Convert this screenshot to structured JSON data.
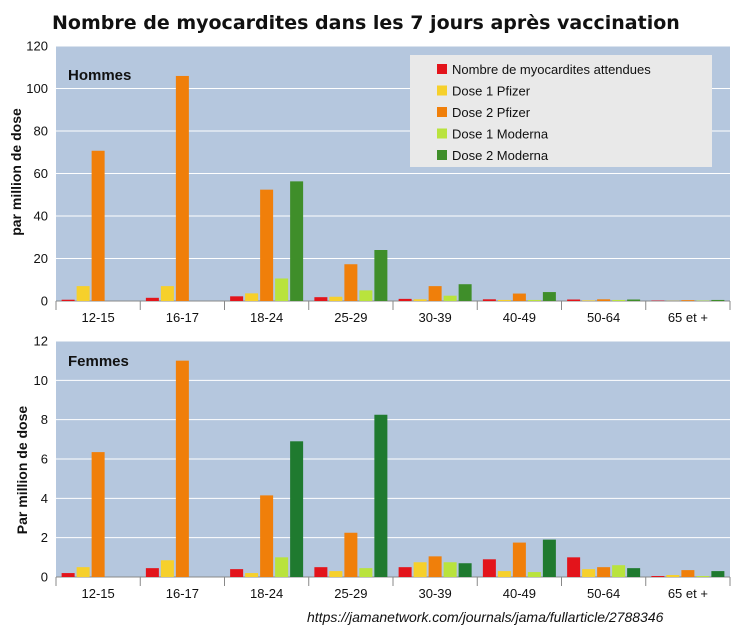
{
  "title": "Nombre de myocardites dans les 7 jours après vaccination",
  "source": "https://jamanetwork.com/journals/jama/fullarticle/2788346",
  "colors": {
    "plot_bg": "#b5c7de",
    "gridline": "#ffffff",
    "legend_bg": "#e9e9e9"
  },
  "chart_data": [
    {
      "type": "bar",
      "title": "Hommes",
      "xlabel": "",
      "ylabel": "par million de dose",
      "ylim": [
        0,
        120
      ],
      "yticks": [
        0,
        20,
        40,
        60,
        80,
        100,
        120
      ],
      "grid": true,
      "legend_position": "top-right",
      "categories": [
        "12-15",
        "16-17",
        "18-24",
        "25-29",
        "30-39",
        "40-49",
        "50-64",
        "65 et +"
      ],
      "series": [
        {
          "name": "Nombre de myocardites attendues",
          "color": "#e3141b",
          "values": [
            0.6,
            1.5,
            2.2,
            1.8,
            1.0,
            0.8,
            0.7,
            0.2
          ]
        },
        {
          "name": "Dose 1 Pfizer",
          "color": "#f6d02b",
          "values": [
            7.0,
            7.0,
            3.6,
            2.0,
            0.8,
            0.5,
            0.3,
            0.1
          ]
        },
        {
          "name": "Dose 2 Pfizer",
          "color": "#f07f0a",
          "values": [
            70.7,
            105.9,
            52.4,
            17.3,
            7.0,
            3.5,
            0.8,
            0.4
          ]
        },
        {
          "name": "Dose 1 Moderna",
          "color": "#b9e33d",
          "values": [
            0,
            0,
            10.6,
            5.0,
            2.5,
            0.5,
            0.5,
            0.2
          ]
        },
        {
          "name": "Dose 2 Moderna",
          "color": "#3f8e2a",
          "values": [
            0,
            0,
            56.3,
            24.0,
            7.9,
            4.2,
            0.7,
            0.5
          ]
        }
      ]
    },
    {
      "type": "bar",
      "title": "Femmes",
      "xlabel": "",
      "ylabel": "Par million de dose",
      "ylim": [
        0,
        12
      ],
      "yticks": [
        0,
        2,
        4,
        6,
        8,
        10,
        12
      ],
      "grid": true,
      "categories": [
        "12-15",
        "16-17",
        "18-24",
        "25-29",
        "30-39",
        "40-49",
        "50-64",
        "65 et +"
      ],
      "series": [
        {
          "name": "Nombre de myocardites attendues",
          "color": "#e3141b",
          "values": [
            0.2,
            0.45,
            0.4,
            0.5,
            0.5,
            0.9,
            1.0,
            0.05
          ]
        },
        {
          "name": "Dose 1 Pfizer",
          "color": "#f6d02b",
          "values": [
            0.5,
            0.85,
            0.2,
            0.3,
            0.75,
            0.3,
            0.4,
            0.1
          ]
        },
        {
          "name": "Dose 2 Pfizer",
          "color": "#f07f0a",
          "values": [
            6.35,
            11.0,
            4.15,
            2.25,
            1.05,
            1.75,
            0.5,
            0.35
          ]
        },
        {
          "name": "Dose 1 Moderna",
          "color": "#b9e33d",
          "values": [
            0,
            0,
            1.0,
            0.45,
            0.75,
            0.25,
            0.6,
            0.05
          ]
        },
        {
          "name": "Dose 2 Moderna",
          "color": "#1f7a2f",
          "values": [
            0,
            0,
            6.9,
            8.25,
            0.7,
            1.9,
            0.45,
            0.3
          ]
        }
      ]
    }
  ]
}
